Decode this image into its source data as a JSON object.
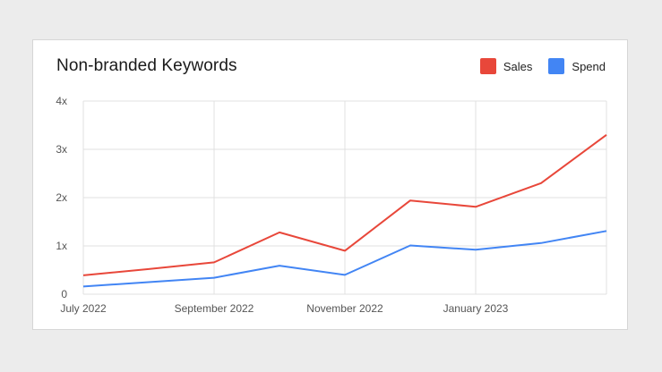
{
  "chart_data": {
    "type": "line",
    "title": "Non-branded Keywords",
    "x": [
      "2022-07",
      "2022-08",
      "2022-09",
      "2022-10",
      "2022-11",
      "2022-12",
      "2023-01",
      "2023-02",
      "2023-03"
    ],
    "xticks": [
      {
        "x": "2022-07",
        "label": "July 2022"
      },
      {
        "x": "2022-09",
        "label": "September 2022"
      },
      {
        "x": "2022-11",
        "label": "November 2022"
      },
      {
        "x": "2023-01",
        "label": "January 2023"
      }
    ],
    "yticks": [
      {
        "value": 0,
        "label": "0"
      },
      {
        "value": 1,
        "label": "1x"
      },
      {
        "value": 2,
        "label": "2x"
      },
      {
        "value": 3,
        "label": "3x"
      },
      {
        "value": 4,
        "label": "4x"
      }
    ],
    "ylim": [
      0,
      4
    ],
    "grid": true,
    "legend_position": "top-right",
    "series": [
      {
        "name": "Sales",
        "color": "#e8473a",
        "values": [
          0.39,
          0.52,
          0.66,
          1.28,
          0.9,
          1.94,
          1.81,
          2.3,
          3.3
        ]
      },
      {
        "name": "Spend",
        "color": "#4285f4",
        "values": [
          0.16,
          0.25,
          0.34,
          0.59,
          0.4,
          1.01,
          0.92,
          1.06,
          1.31
        ]
      }
    ]
  }
}
